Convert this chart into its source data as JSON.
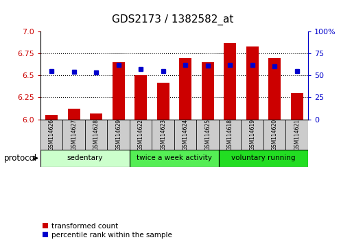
{
  "title": "GDS2173 / 1382582_at",
  "samples": [
    "GSM114626",
    "GSM114627",
    "GSM114628",
    "GSM114629",
    "GSM114622",
    "GSM114623",
    "GSM114624",
    "GSM114625",
    "GSM114618",
    "GSM114619",
    "GSM114620",
    "GSM114621"
  ],
  "transformed_count": [
    6.05,
    6.12,
    6.07,
    6.65,
    6.5,
    6.42,
    6.7,
    6.65,
    6.87,
    6.83,
    6.7,
    6.3
  ],
  "percentile_rank": [
    55,
    54,
    53,
    62,
    57,
    55,
    62,
    61,
    62,
    62,
    60,
    55
  ],
  "groups": [
    {
      "label": "sedentary",
      "start": 0,
      "end": 4,
      "color": "#ccffcc"
    },
    {
      "label": "twice a week activity",
      "start": 4,
      "end": 8,
      "color": "#55ee55"
    },
    {
      "label": "voluntary running",
      "start": 8,
      "end": 12,
      "color": "#22dd22"
    }
  ],
  "ylim_left": [
    6.0,
    7.0
  ],
  "ylim_right": [
    0,
    100
  ],
  "yticks_left": [
    6.0,
    6.25,
    6.5,
    6.75,
    7.0
  ],
  "yticks_right": [
    0,
    25,
    50,
    75,
    100
  ],
  "bar_color": "#cc0000",
  "dot_color": "#0000cc",
  "bar_bottom": 6.0,
  "background_color": "#ffffff",
  "tick_label_color_left": "#cc0000",
  "tick_label_color_right": "#0000cc",
  "sample_box_color": "#cccccc",
  "grid_yticks": [
    6.25,
    6.5,
    6.75
  ]
}
